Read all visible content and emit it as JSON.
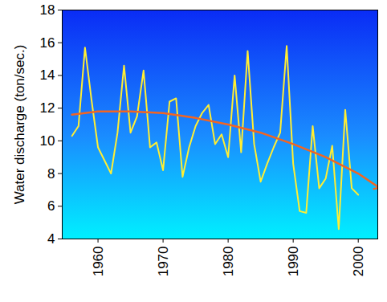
{
  "chart_data": {
    "type": "line",
    "ylabel": "Water discharge (ton/sec.)",
    "x": [
      1956,
      1957,
      1958,
      1959,
      1960,
      1961,
      1962,
      1963,
      1964,
      1965,
      1966,
      1967,
      1968,
      1969,
      1970,
      1971,
      1972,
      1973,
      1974,
      1975,
      1976,
      1977,
      1978,
      1979,
      1980,
      1981,
      1982,
      1983,
      1984,
      1985,
      1986,
      1987,
      1988,
      1989,
      1990,
      1991,
      1992,
      1993,
      1994,
      1995,
      1996,
      1997,
      1998,
      1999,
      2000
    ],
    "series": [
      {
        "color": "#ffee33",
        "values": [
          10.3,
          10.9,
          15.7,
          12.5,
          9.6,
          8.8,
          8.0,
          10.5,
          14.6,
          10.5,
          11.5,
          14.3,
          9.6,
          9.9,
          8.2,
          12.4,
          12.6,
          7.8,
          9.6,
          10.9,
          11.7,
          12.2,
          9.8,
          10.4,
          9.0,
          14.0,
          9.3,
          15.5,
          9.8,
          7.5,
          8.6,
          9.6,
          10.5,
          15.8,
          8.6,
          5.7,
          5.6,
          10.9,
          7.1,
          7.7,
          9.7,
          4.6,
          11.9,
          7.1,
          6.7
        ]
      },
      {
        "color": "#f26522",
        "marker": "arrow",
        "x": [
          1956,
          1960,
          1965,
          1970,
          1975,
          1980,
          1985,
          1990,
          1995,
          2000,
          2003
        ],
        "values": [
          11.6,
          11.8,
          11.8,
          11.7,
          11.4,
          11.0,
          10.5,
          9.8,
          9.0,
          8.0,
          7.2
        ]
      }
    ],
    "xlim": [
      1954.5,
      2003
    ],
    "ylim": [
      4,
      18
    ],
    "xticks": [
      1960,
      1970,
      1980,
      1990,
      2000
    ],
    "yticks": [
      4,
      6,
      8,
      10,
      12,
      14,
      16,
      18
    ],
    "grid": false
  }
}
